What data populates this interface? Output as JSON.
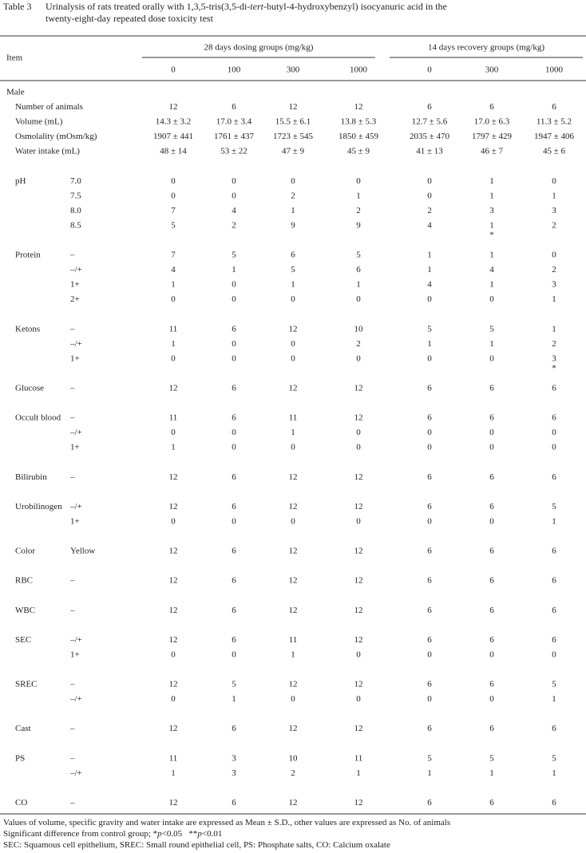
{
  "title": {
    "label": "Table 3",
    "lines": [
      [
        {
          "text": "Urinalysis of rats treated orally with 1,3,5-tris(3,5-di-"
        },
        {
          "text": "tert",
          "italic": true
        },
        {
          "text": "-butyl-4-hydroxybenzyl) isocyanuric acid in the"
        }
      ],
      [
        {
          "text": "twenty-eight-day repeated dose toxicity test"
        }
      ]
    ]
  },
  "header": {
    "item": "Item",
    "group1": "28 days dosing groups (mg/kg)",
    "group2": "14 days recovery groups (mg/kg)",
    "doses": [
      "0",
      "100",
      "300",
      "1000",
      "0",
      "300",
      "1000"
    ]
  },
  "table": {
    "sex": "Male",
    "sections": [
      {
        "rows": [
          {
            "item": "Number of animals",
            "values": [
              "12",
              "6",
              "12",
              "12",
              "6",
              "6",
              "6"
            ]
          },
          {
            "item": "Volume (mL)",
            "values": [
              "14.3 ± 3.2",
              "17.0 ± 3.4",
              "15.5 ± 6.1",
              "13.8 ± 5.3",
              "12.7 ± 5.6",
              "17.0 ± 6.3",
              "11.3 ± 5.2"
            ]
          },
          {
            "item": "Osmolality (mOsm/kg)",
            "values": [
              "1907 ± 441",
              "1761 ± 437",
              "1723 ± 545",
              "1850 ± 459",
              "2035 ± 470",
              "1797 ± 429",
              "1947 ± 406"
            ]
          },
          {
            "item": "Water intake (mL)",
            "values": [
              "48 ± 14",
              "53 ± 22",
              "47 ± 9",
              "45 ± 9",
              "41 ± 13",
              "46 ± 7",
              "45 ± 6"
            ]
          }
        ]
      },
      {
        "rows": [
          {
            "item": "pH",
            "sub": "7.0",
            "values": [
              "0",
              "0",
              "0",
              "0",
              "0",
              "1",
              "0"
            ]
          },
          {
            "sub": "7.5",
            "values": [
              "0",
              "0",
              "2",
              "1",
              "0",
              "1",
              "1"
            ]
          },
          {
            "sub": "8.0",
            "values": [
              "7",
              "4",
              "1",
              "2",
              "2",
              "3",
              "3"
            ]
          },
          {
            "sub": "8.5",
            "values": [
              "5",
              "2",
              "9",
              "9",
              "4",
              {
                "value": "1",
                "mark": "*"
              },
              "2"
            ]
          }
        ]
      },
      {
        "rows": [
          {
            "item": "Protein",
            "sub": "–",
            "values": [
              "7",
              "5",
              "6",
              "5",
              "1",
              "1",
              "0"
            ]
          },
          {
            "sub": "–/+",
            "values": [
              "4",
              "1",
              "5",
              "6",
              "1",
              "4",
              "2"
            ]
          },
          {
            "sub": "1+",
            "values": [
              "1",
              "0",
              "1",
              "1",
              "4",
              "1",
              "3"
            ]
          },
          {
            "sub": "2+",
            "values": [
              "0",
              "0",
              "0",
              "0",
              "0",
              "0",
              "1"
            ]
          }
        ]
      },
      {
        "rows": [
          {
            "item": "Ketons",
            "sub": "–",
            "values": [
              "11",
              "6",
              "12",
              "10",
              "5",
              "5",
              "1"
            ]
          },
          {
            "sub": "–/+",
            "values": [
              "1",
              "0",
              "0",
              "2",
              "1",
              "1",
              "2"
            ]
          },
          {
            "sub": "1+",
            "values": [
              "0",
              "0",
              "0",
              "0",
              "0",
              "0",
              {
                "value": "3",
                "mark": "*"
              }
            ]
          }
        ]
      },
      {
        "rows": [
          {
            "item": "Glucose",
            "sub": "–",
            "values": [
              "12",
              "6",
              "12",
              "12",
              "6",
              "6",
              "6"
            ]
          }
        ]
      },
      {
        "rows": [
          {
            "item": "Occult blood",
            "sub": "–",
            "values": [
              "11",
              "6",
              "11",
              "12",
              "6",
              "6",
              "6"
            ]
          },
          {
            "sub": "–/+",
            "values": [
              "0",
              "0",
              "1",
              "0",
              "0",
              "0",
              "0"
            ]
          },
          {
            "sub": "1+",
            "values": [
              "1",
              "0",
              "0",
              "0",
              "0",
              "0",
              "0"
            ]
          }
        ]
      },
      {
        "rows": [
          {
            "item": "Bilirubin",
            "sub": "–",
            "values": [
              "12",
              "6",
              "12",
              "12",
              "6",
              "6",
              "6"
            ]
          }
        ]
      },
      {
        "rows": [
          {
            "item": "Urobilinogen",
            "sub": "–/+",
            "values": [
              "12",
              "6",
              "12",
              "12",
              "6",
              "6",
              "5"
            ]
          },
          {
            "sub": "1+",
            "values": [
              "0",
              "0",
              "0",
              "0",
              "0",
              "0",
              "1"
            ]
          }
        ]
      },
      {
        "rows": [
          {
            "item": "Color",
            "sub": "Yellow",
            "values": [
              "12",
              "6",
              "12",
              "12",
              "6",
              "6",
              "6"
            ]
          }
        ]
      },
      {
        "rows": [
          {
            "item": "RBC",
            "sub": "–",
            "values": [
              "12",
              "6",
              "12",
              "12",
              "6",
              "6",
              "6"
            ]
          }
        ]
      },
      {
        "rows": [
          {
            "item": "WBC",
            "sub": "–",
            "values": [
              "12",
              "6",
              "12",
              "12",
              "6",
              "6",
              "6"
            ]
          }
        ]
      },
      {
        "rows": [
          {
            "item": "SEC",
            "sub": "–/+",
            "values": [
              "12",
              "6",
              "11",
              "12",
              "6",
              "6",
              "6"
            ]
          },
          {
            "sub": "1+",
            "values": [
              "0",
              "0",
              "1",
              "0",
              "0",
              "0",
              "0"
            ]
          }
        ]
      },
      {
        "rows": [
          {
            "item": "SREC",
            "sub": "–",
            "values": [
              "12",
              "5",
              "12",
              "12",
              "6",
              "6",
              "5"
            ]
          },
          {
            "sub": "–/+",
            "values": [
              "0",
              "1",
              "0",
              "0",
              "0",
              "0",
              "1"
            ]
          }
        ]
      },
      {
        "rows": [
          {
            "item": "Cast",
            "sub": "–",
            "values": [
              "12",
              "6",
              "12",
              "12",
              "6",
              "6",
              "6"
            ]
          }
        ]
      },
      {
        "rows": [
          {
            "item": "PS",
            "sub": "–",
            "values": [
              "11",
              "3",
              "10",
              "11",
              "5",
              "5",
              "5"
            ]
          },
          {
            "sub": "–/+",
            "values": [
              "1",
              "3",
              "2",
              "1",
              "1",
              "1",
              "1"
            ]
          }
        ]
      },
      {
        "rows": [
          {
            "item": "CO",
            "sub": "–",
            "values": [
              "12",
              "6",
              "12",
              "12",
              "6",
              "6",
              "6"
            ]
          }
        ]
      }
    ]
  },
  "footnotes": [
    [
      {
        "text": "Values of volume, specific gravity and water intake are expressed as Mean ± S.D., other values are expressed as No. of animals"
      }
    ],
    [
      {
        "text": "Significant difference from control group; *"
      },
      {
        "text": "p",
        "italic": true
      },
      {
        "text": "<0.05   **"
      },
      {
        "text": "p",
        "italic": true
      },
      {
        "text": "<0.01"
      }
    ],
    [
      {
        "text": "SEC: Squamous cell epithelium, SREC: Small round epithelial cell, PS: Phosphate salts, CO: Calcium oxalate"
      }
    ]
  ]
}
